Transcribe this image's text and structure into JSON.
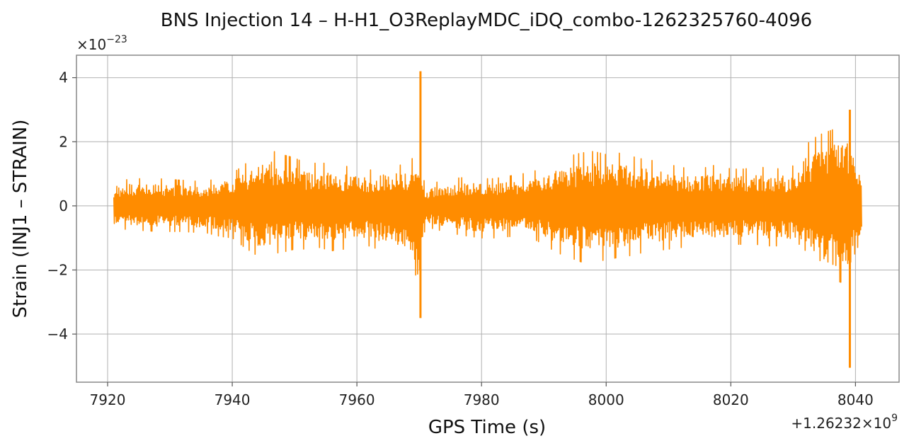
{
  "chart_data": {
    "type": "line",
    "title": "BNS Injection 14 – H-H1_O3ReplayMDC_iDQ_combo-1262325760-4096",
    "xlabel": "GPS Time (s)",
    "ylabel": "Strain (INJ1 – STRAIN)",
    "x_offset_label": "+1.26232",
    "x_offset_exp_label": "×10",
    "x_offset_exp": "9",
    "y_multiplier_label": "×10",
    "y_multiplier_exp": "−23",
    "xlim": [
      7915,
      8047
    ],
    "ylim": [
      -5.5,
      4.7
    ],
    "x_ticks": [
      7920,
      7940,
      7960,
      7980,
      8000,
      8020,
      8040
    ],
    "y_ticks": [
      -4,
      -2,
      0,
      2,
      4
    ],
    "y_tick_labels": [
      "−4",
      "−2",
      "0",
      "2",
      "4"
    ],
    "grid": true,
    "line_color": "#ff8c00",
    "series": [
      {
        "envelope_x": [
          7921,
          7924,
          7928,
          7932,
          7936,
          7938,
          7940,
          7942,
          7944,
          7946,
          7948,
          7950,
          7952,
          7954,
          7956,
          7958,
          7960,
          7962,
          7964,
          7966,
          7968,
          7969,
          7970,
          7971,
          7972,
          7975,
          7978,
          7980,
          7982,
          7985,
          7988,
          7990,
          7992,
          7994,
          7996,
          7998,
          8000,
          8002,
          8004,
          8006,
          8008,
          8010,
          8012,
          8015,
          8018,
          8020,
          8022,
          8024,
          8026,
          8028,
          8030,
          8032,
          8034,
          8036,
          8038,
          8039,
          8040,
          8041
        ],
        "upper": [
          0.75,
          0.85,
          0.85,
          0.8,
          0.75,
          0.95,
          1.0,
          1.3,
          1.5,
          1.75,
          1.6,
          1.5,
          1.3,
          1.35,
          1.3,
          1.25,
          1.15,
          1.1,
          1.35,
          1.25,
          1.3,
          1.5,
          1.8,
          0.5,
          0.7,
          0.85,
          0.9,
          0.85,
          0.85,
          0.95,
          1.05,
          1.2,
          1.4,
          1.55,
          1.65,
          1.7,
          1.6,
          1.65,
          1.55,
          1.45,
          1.4,
          1.3,
          1.2,
          1.15,
          1.3,
          1.15,
          1.15,
          1.2,
          1.2,
          1.15,
          1.25,
          1.9,
          2.2,
          2.35,
          2.5,
          2.8,
          1.4,
          1.25
        ],
        "lower": [
          -0.7,
          -0.75,
          -0.8,
          -0.8,
          -0.85,
          -0.95,
          -1.0,
          -1.3,
          -1.55,
          -1.5,
          -1.45,
          -1.35,
          -1.35,
          -1.3,
          -1.4,
          -1.35,
          -1.3,
          -1.25,
          -1.4,
          -1.55,
          -1.6,
          -2.2,
          -2.1,
          -0.6,
          -0.7,
          -0.85,
          -0.95,
          -1.0,
          -1.0,
          -0.95,
          -1.0,
          -1.2,
          -1.45,
          -1.6,
          -1.75,
          -1.7,
          -1.7,
          -1.6,
          -1.55,
          -1.45,
          -1.4,
          -1.35,
          -1.3,
          -1.2,
          -1.25,
          -1.2,
          -1.2,
          -1.2,
          -1.25,
          -1.25,
          -1.3,
          -1.85,
          -2.15,
          -2.3,
          -2.4,
          -2.6,
          -1.35,
          -1.2
        ],
        "spikes": [
          {
            "x": 7970.2,
            "y_max": 4.2,
            "y_min": -3.5
          },
          {
            "x": 8039.1,
            "y_max": 3.0,
            "y_min": -5.05
          }
        ]
      }
    ]
  }
}
